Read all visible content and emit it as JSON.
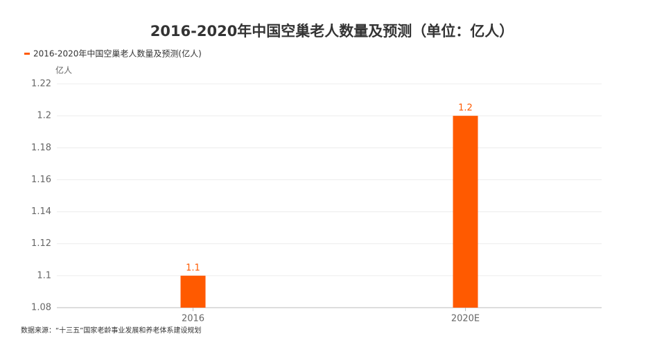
{
  "chart_data": {
    "type": "bar",
    "title": "2016-2020年中国空巢老人数量及预测（单位：亿人）",
    "y_axis_label": "亿人",
    "source": "数据来源：“十三五”国家老龄事业发展和养老体系建设规划",
    "categories": [
      "2016",
      "2020E"
    ],
    "series": [
      {
        "name": "2016-2020年中国空巢老人数量及预测(亿人)",
        "color": "#ff5a00",
        "values": [
          1.1,
          1.2
        ]
      }
    ],
    "ylim": [
      1.08,
      1.22
    ],
    "yticks": [
      1.08,
      1.1,
      1.12,
      1.14,
      1.16,
      1.18,
      1.2,
      1.22
    ],
    "grid": true
  }
}
